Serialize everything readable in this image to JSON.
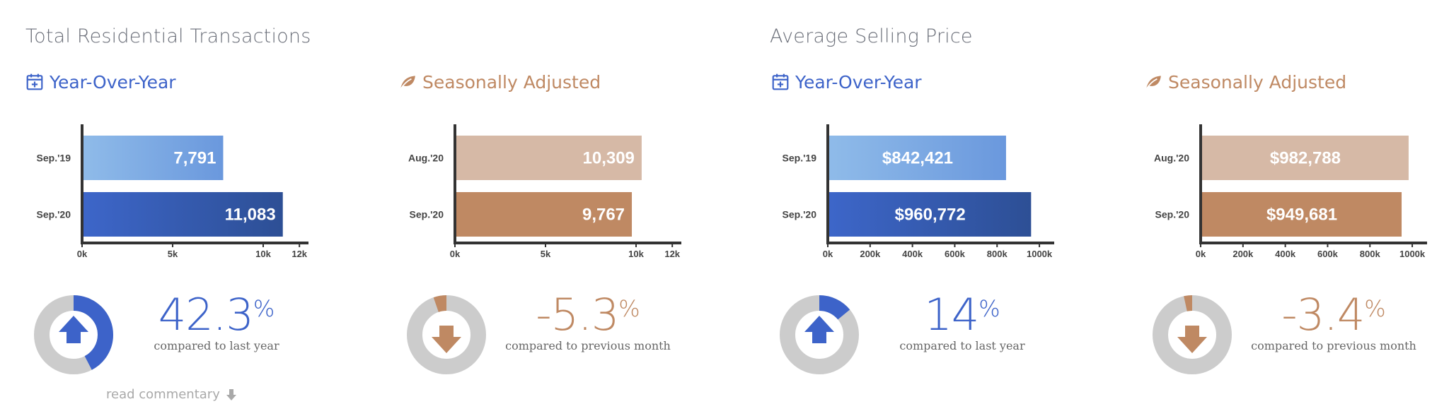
{
  "sections": [
    {
      "title": "Total Residential Transactions"
    },
    {
      "title": "Average Selling Price"
    }
  ],
  "read_more": {
    "label": "read commentary"
  },
  "colors": {
    "blue": "#3d63c9",
    "blue_light": "#7aa8e2",
    "blue_dark": "#2b4d97",
    "copper": "#bf8963",
    "tan": "#d6b9a6",
    "donut_gray": "#cccccc",
    "axis": "#333333"
  },
  "panels": [
    {
      "id": "trans-yoy",
      "style": "blue",
      "header": "Year-Over-Year",
      "header_icon": "calendar-plus-icon",
      "direction": "up",
      "change_value": "42.3",
      "change_symbol": "%",
      "caption": "compared to last year",
      "arc_fraction": 0.423
    },
    {
      "id": "trans-sa",
      "style": "copper",
      "header": "Seasonally Adjusted",
      "header_icon": "leaf-icon",
      "direction": "down",
      "change_value": "-5.3",
      "change_symbol": "%",
      "caption": "compared to previous month",
      "arc_fraction": 0.053
    },
    {
      "id": "price-yoy",
      "style": "blue",
      "header": "Year-Over-Year",
      "header_icon": "calendar-plus-icon",
      "direction": "up",
      "change_value": "14",
      "change_symbol": "%",
      "caption": "compared to last year",
      "arc_fraction": 0.14
    },
    {
      "id": "price-sa",
      "style": "copper",
      "header": "Seasonally Adjusted",
      "header_icon": "leaf-icon",
      "direction": "down",
      "change_value": "-3.4",
      "change_symbol": "%",
      "caption": "compared to previous month",
      "arc_fraction": 0.034
    }
  ],
  "chart_data": [
    {
      "type": "bar",
      "orientation": "horizontal",
      "categories": [
        "Sep.'19",
        "Sep.'20"
      ],
      "values": [
        7791,
        11083
      ],
      "labels": [
        "7,791",
        "11,083"
      ],
      "xlim": [
        0,
        12500
      ],
      "ticks": [
        0,
        5000,
        10000,
        12000
      ],
      "tick_labels": [
        "0k",
        "5k",
        "10k",
        "12k"
      ]
    },
    {
      "type": "bar",
      "orientation": "horizontal",
      "categories": [
        "Aug.'20",
        "Sep.'20"
      ],
      "values": [
        10309,
        9767
      ],
      "labels": [
        "10,309",
        "9,767"
      ],
      "xlim": [
        0,
        12500
      ],
      "ticks": [
        0,
        5000,
        10000,
        12000
      ],
      "tick_labels": [
        "0k",
        "5k",
        "10k",
        "12k"
      ]
    },
    {
      "type": "bar",
      "orientation": "horizontal",
      "categories": [
        "Sep.'19",
        "Sep.'20"
      ],
      "values": [
        842421,
        960772
      ],
      "labels": [
        "$842,421",
        "$960,772"
      ],
      "xlim": [
        0,
        1070000
      ],
      "ticks": [
        0,
        200000,
        400000,
        600000,
        800000,
        1000000
      ],
      "tick_labels": [
        "0k",
        "200k",
        "400k",
        "600k",
        "800k",
        "1000k"
      ]
    },
    {
      "type": "bar",
      "orientation": "horizontal",
      "categories": [
        "Aug.'20",
        "Sep.'20"
      ],
      "values": [
        982788,
        949681
      ],
      "labels": [
        "$982,788",
        "$949,681"
      ],
      "xlim": [
        0,
        1070000
      ],
      "ticks": [
        0,
        200000,
        400000,
        600000,
        800000,
        1000000
      ],
      "tick_labels": [
        "0k",
        "200k",
        "400k",
        "600k",
        "800k",
        "1000k"
      ]
    }
  ]
}
